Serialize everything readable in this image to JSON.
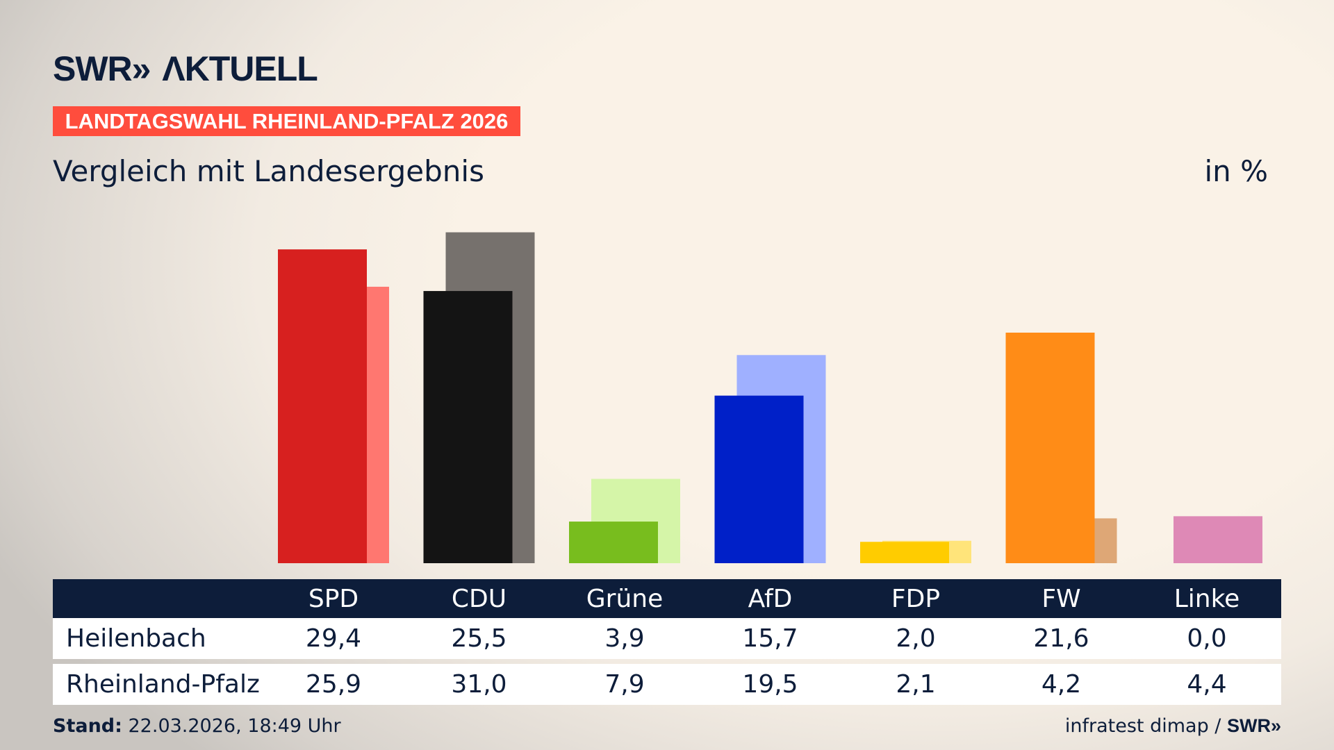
{
  "logo": "SWR» AKTUELL",
  "banner": "LANDTAGSWAHL RHEINLAND-PFALZ 2026",
  "subtitle": "Vergleich mit Landesergebnis",
  "unit": "in %",
  "footer": {
    "stand_label": "Stand:",
    "stand_value": " 22.03.2026, 18:49 Uhr",
    "source": "infratest dimap / ",
    "source_brand": "SWR»"
  },
  "chart_data": {
    "type": "bar",
    "categories": [
      "SPD",
      "CDU",
      "Grüne",
      "AfD",
      "FDP",
      "FW",
      "Linke"
    ],
    "series": [
      {
        "name": "Heilenbach",
        "values": [
          29.4,
          25.5,
          3.9,
          15.7,
          2.0,
          21.6,
          0.0
        ],
        "colors": [
          "#d7201f",
          "#141414",
          "#78bd1e",
          "#0020c8",
          "#ffcc00",
          "#ff8c17",
          "#c2508a"
        ]
      },
      {
        "name": "Rheinland-Pfalz",
        "values": [
          25.9,
          31.0,
          7.9,
          19.5,
          2.1,
          4.2,
          4.4
        ],
        "colors": [
          "#ff7770",
          "#76716d",
          "#d5f5a8",
          "#9fb0ff",
          "#ffe47a",
          "#dea776",
          "#de89b6"
        ]
      }
    ],
    "value_labels": [
      [
        "29,4",
        "25,5",
        "3,9",
        "15,7",
        "2,0",
        "21,6",
        "0,0"
      ],
      [
        "25,9",
        "31,0",
        "7,9",
        "19,5",
        "2,1",
        "4,2",
        "4,4"
      ]
    ],
    "ylim": [
      0,
      31
    ]
  }
}
